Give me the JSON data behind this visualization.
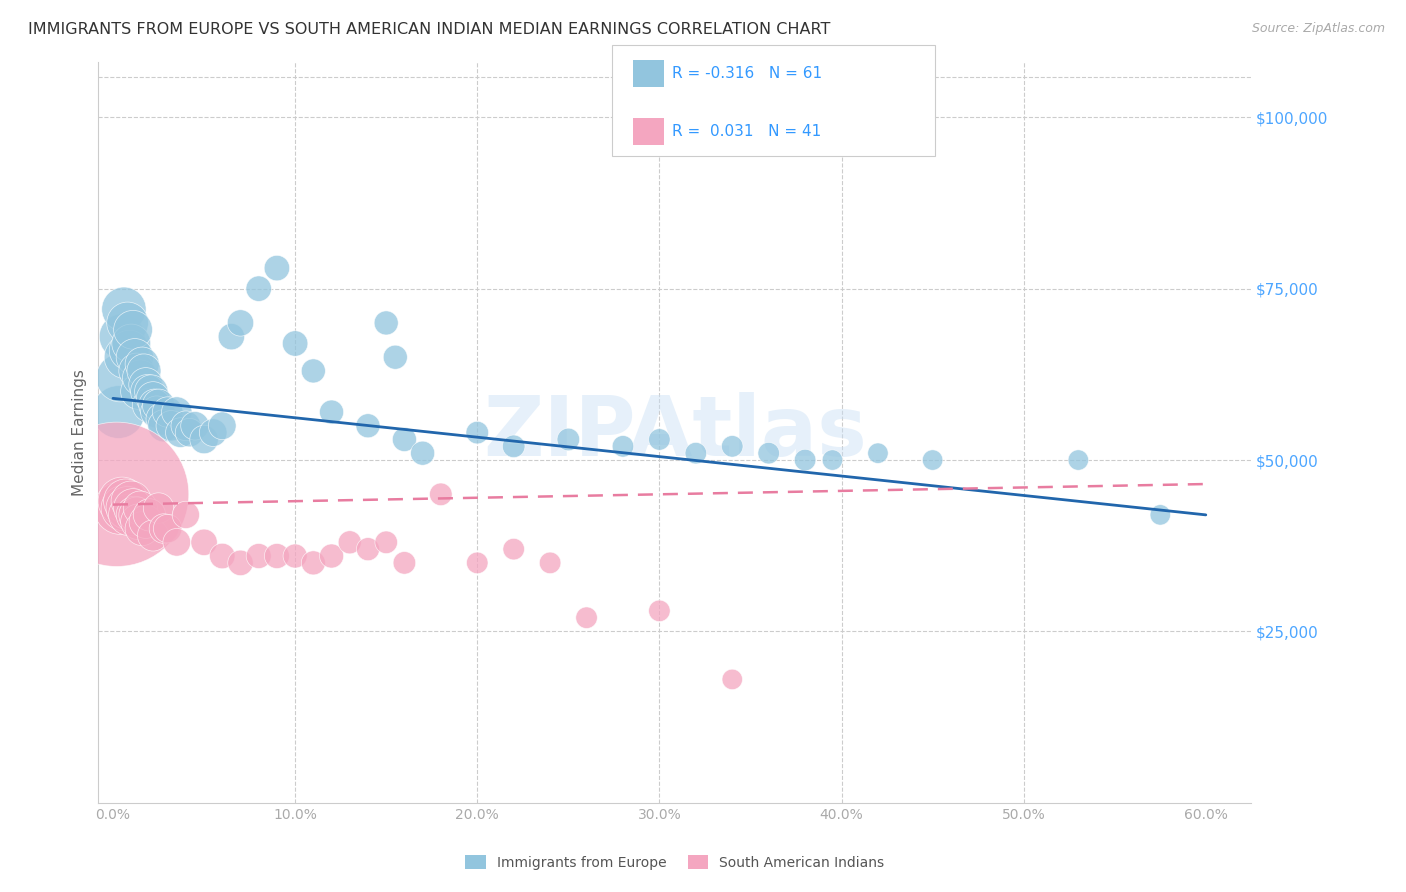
{
  "title": "IMMIGRANTS FROM EUROPE VS SOUTH AMERICAN INDIAN MEDIAN EARNINGS CORRELATION CHART",
  "source": "Source: ZipAtlas.com",
  "xlabel_ticks": [
    "0.0%",
    "",
    "",
    "",
    "",
    "",
    "",
    "",
    "",
    "",
    "10.0%",
    "",
    "",
    "",
    "",
    "",
    "",
    "",
    "",
    "",
    "20.0%",
    "",
    "",
    "",
    "",
    "",
    "",
    "",
    "",
    "",
    "30.0%",
    "",
    "",
    "",
    "",
    "",
    "",
    "",
    "",
    "",
    "40.0%",
    "",
    "",
    "",
    "",
    "",
    "",
    "",
    "",
    "",
    "50.0%",
    "",
    "",
    "",
    "",
    "",
    "",
    "",
    "",
    "",
    "60.0%"
  ],
  "xlabel_values": [
    0.0,
    0.01,
    0.02,
    0.03,
    0.04,
    0.05,
    0.06,
    0.07,
    0.08,
    0.09,
    0.1,
    0.11,
    0.12,
    0.13,
    0.14,
    0.15,
    0.16,
    0.17,
    0.18,
    0.19,
    0.2,
    0.21,
    0.22,
    0.23,
    0.24,
    0.25,
    0.26,
    0.27,
    0.28,
    0.29,
    0.3,
    0.31,
    0.32,
    0.33,
    0.34,
    0.35,
    0.36,
    0.37,
    0.38,
    0.39,
    0.4,
    0.41,
    0.42,
    0.43,
    0.44,
    0.45,
    0.46,
    0.47,
    0.48,
    0.49,
    0.5,
    0.51,
    0.52,
    0.53,
    0.54,
    0.55,
    0.56,
    0.57,
    0.58,
    0.59,
    0.6
  ],
  "xtick_major": [
    0.0,
    0.1,
    0.2,
    0.3,
    0.4,
    0.5,
    0.6
  ],
  "xtick_major_labels": [
    "0.0%",
    "10.0%",
    "20.0%",
    "30.0%",
    "40.0%",
    "50.0%",
    "60.0%"
  ],
  "ylabel": "Median Earnings",
  "ylabel_right_ticks": [
    "$100,000",
    "$75,000",
    "$50,000",
    "$25,000"
  ],
  "ylabel_right_values": [
    100000,
    75000,
    50000,
    25000
  ],
  "ylim": [
    0,
    108000
  ],
  "xlim": [
    -0.008,
    0.625
  ],
  "watermark": "ZIPAtlas",
  "blue_label": "Immigrants from Europe",
  "blue_R": "-0.316",
  "blue_N": "61",
  "pink_label": "South American Indians",
  "pink_R": "0.031",
  "pink_N": "41",
  "blue_color": "#92c5de",
  "blue_line_color": "#2166ac",
  "pink_color": "#f4a6c0",
  "pink_line_color": "#e87ca0",
  "blue_scatter_x": [
    0.003,
    0.004,
    0.005,
    0.006,
    0.007,
    0.008,
    0.009,
    0.01,
    0.011,
    0.012,
    0.013,
    0.014,
    0.015,
    0.016,
    0.017,
    0.018,
    0.019,
    0.02,
    0.021,
    0.022,
    0.023,
    0.024,
    0.025,
    0.027,
    0.028,
    0.03,
    0.032,
    0.035,
    0.037,
    0.04,
    0.042,
    0.045,
    0.05,
    0.055,
    0.06,
    0.065,
    0.07,
    0.08,
    0.09,
    0.1,
    0.11,
    0.12,
    0.14,
    0.15,
    0.155,
    0.16,
    0.17,
    0.2,
    0.22,
    0.25,
    0.28,
    0.3,
    0.32,
    0.34,
    0.36,
    0.38,
    0.395,
    0.42,
    0.45,
    0.53,
    0.575
  ],
  "blue_scatter_y": [
    57000,
    62000,
    68000,
    72000,
    65000,
    70000,
    66000,
    67000,
    69000,
    65000,
    63000,
    60000,
    62000,
    64000,
    63000,
    61000,
    60000,
    58000,
    60000,
    59000,
    58000,
    57000,
    58000,
    56000,
    55000,
    57000,
    55000,
    57000,
    54000,
    55000,
    54000,
    55000,
    53000,
    54000,
    55000,
    68000,
    70000,
    75000,
    78000,
    67000,
    63000,
    57000,
    55000,
    70000,
    65000,
    53000,
    51000,
    54000,
    52000,
    53000,
    52000,
    53000,
    51000,
    52000,
    51000,
    50000,
    50000,
    51000,
    50000,
    50000,
    42000
  ],
  "blue_scatter_sizes": [
    120,
    100,
    90,
    85,
    80,
    75,
    70,
    65,
    65,
    60,
    55,
    55,
    55,
    50,
    50,
    50,
    50,
    50,
    48,
    48,
    45,
    45,
    45,
    45,
    45,
    40,
    40,
    40,
    38,
    38,
    35,
    35,
    35,
    33,
    33,
    30,
    30,
    28,
    28,
    28,
    25,
    25,
    25,
    25,
    25,
    25,
    25,
    22,
    22,
    22,
    20,
    20,
    20,
    20,
    20,
    20,
    18,
    18,
    18,
    18,
    18
  ],
  "pink_scatter_x": [
    0.002,
    0.004,
    0.005,
    0.006,
    0.007,
    0.008,
    0.009,
    0.01,
    0.011,
    0.012,
    0.013,
    0.014,
    0.015,
    0.016,
    0.018,
    0.02,
    0.022,
    0.025,
    0.028,
    0.03,
    0.035,
    0.04,
    0.05,
    0.06,
    0.07,
    0.08,
    0.09,
    0.1,
    0.11,
    0.12,
    0.13,
    0.14,
    0.15,
    0.16,
    0.18,
    0.2,
    0.22,
    0.24,
    0.26,
    0.3,
    0.34
  ],
  "pink_scatter_y": [
    45000,
    43000,
    44000,
    43000,
    44000,
    43000,
    42000,
    44000,
    43000,
    42000,
    42000,
    41000,
    43000,
    40000,
    41000,
    42000,
    39000,
    43000,
    40000,
    40000,
    38000,
    42000,
    38000,
    36000,
    35000,
    36000,
    36000,
    36000,
    35000,
    36000,
    38000,
    37000,
    38000,
    35000,
    45000,
    35000,
    37000,
    35000,
    27000,
    28000,
    18000
  ],
  "pink_scatter_sizes": [
    900,
    120,
    100,
    90,
    85,
    80,
    75,
    70,
    65,
    60,
    55,
    55,
    50,
    50,
    48,
    45,
    42,
    40,
    38,
    35,
    33,
    32,
    30,
    28,
    28,
    27,
    27,
    25,
    25,
    25,
    23,
    23,
    22,
    22,
    22,
    20,
    20,
    20,
    20,
    20,
    18
  ],
  "blue_trend_x": [
    0.0,
    0.6
  ],
  "blue_trend_y": [
    59000,
    42000
  ],
  "pink_trend_x": [
    0.0,
    0.6
  ],
  "pink_trend_y": [
    43500,
    46500
  ],
  "background_color": "#ffffff",
  "grid_color": "#cccccc",
  "title_color": "#333333",
  "axis_label_color": "#4da6ff",
  "legend_text_color": "#3399ff",
  "title_fontsize": 11.5,
  "label_fontsize": 10,
  "tick_color": "#aaaaaa"
}
